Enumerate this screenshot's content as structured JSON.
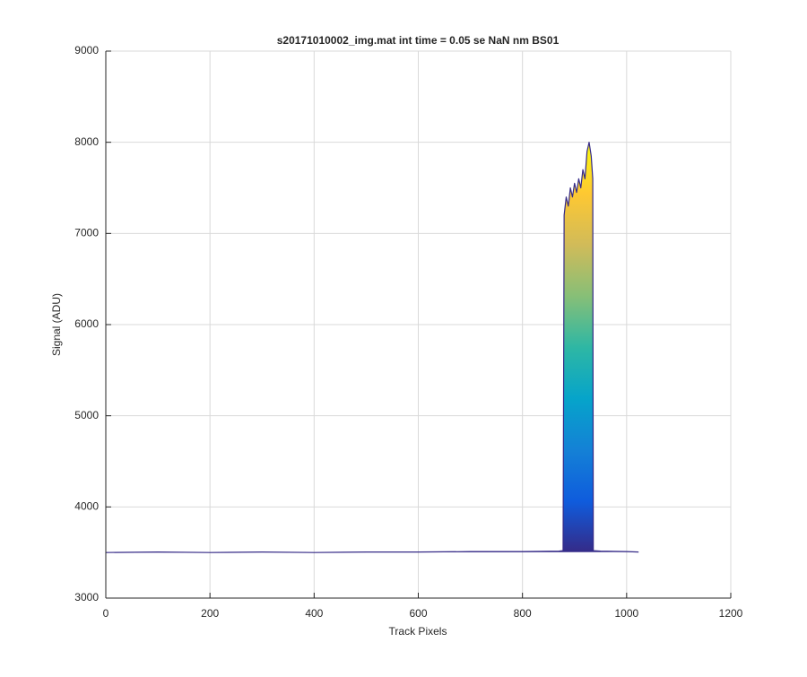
{
  "chart_data": {
    "type": "line",
    "title": "s20171010002_img.mat int time = 0.05 se  NaN nm BS01",
    "x_label": "Track Pixels",
    "y_label": "Signal (ADU)",
    "xlim": [
      0,
      1200
    ],
    "ylim": [
      3000,
      9000
    ],
    "xticks": [
      0,
      200,
      400,
      600,
      800,
      1000,
      1200
    ],
    "yticks": [
      3000,
      4000,
      5000,
      6000,
      7000,
      8000,
      9000
    ],
    "grid": true,
    "colormap": [
      "#352a87",
      "#0f5cdd",
      "#1481d6",
      "#06a4ca",
      "#2eb7a4",
      "#87bf77",
      "#d1bb59",
      "#fec832",
      "#f9fb0e"
    ],
    "series": [
      {
        "name": "signal",
        "color": "#352a87",
        "x": [
          0,
          100,
          200,
          300,
          400,
          500,
          600,
          700,
          800,
          870,
          878,
          880,
          884,
          888,
          892,
          896,
          900,
          904,
          908,
          912,
          916,
          920,
          924,
          928,
          932,
          935,
          936,
          950,
          1000,
          1023
        ],
        "values": [
          3500,
          3505,
          3500,
          3505,
          3500,
          3505,
          3505,
          3510,
          3510,
          3515,
          3520,
          7200,
          7400,
          7300,
          7500,
          7400,
          7550,
          7450,
          7600,
          7500,
          7700,
          7600,
          7900,
          8000,
          7850,
          7600,
          3520,
          3515,
          3510,
          3505
        ]
      }
    ]
  }
}
